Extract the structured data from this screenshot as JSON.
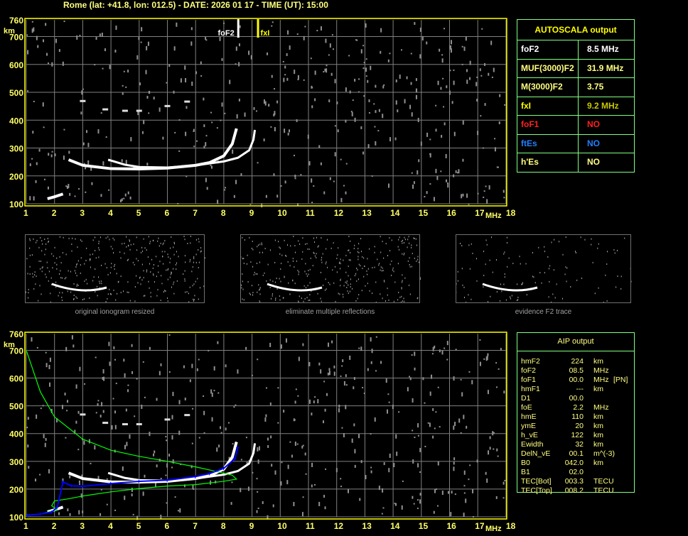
{
  "title": "Rome (lat: +41.8, lon: 012.5) - DATE: 2026 01 17 - TIME (UT): 15:00",
  "autoscala": {
    "header": "AUTOSCALA output",
    "rows": [
      {
        "key": "foF2",
        "value": "8.5 MHz",
        "key_color": "#ffffff",
        "value_color": "#ffffff"
      },
      {
        "key": "MUF(3000)F2",
        "value": "31.9 MHz",
        "key_color": "#ffff80",
        "value_color": "#ffff80"
      },
      {
        "key": "M(3000)F2",
        "value": "3.75",
        "key_color": "#ffff80",
        "value_color": "#ffff80"
      },
      {
        "key": "fxI",
        "value": "9.2 MHz",
        "key_color": "#ffff00",
        "value_color": "#c8c800"
      },
      {
        "key": "foF1",
        "value": "NO",
        "key_color": "#ff2020",
        "value_color": "#ff2020"
      },
      {
        "key": "ftEs",
        "value": "NO",
        "key_color": "#2080ff",
        "value_color": "#2080ff"
      },
      {
        "key": "h'Es",
        "value": "NO",
        "key_color": "#ffff80",
        "value_color": "#ffff80"
      }
    ]
  },
  "aip": {
    "header": "AIP output",
    "rows": [
      [
        "hmF2",
        "224",
        "km",
        ""
      ],
      [
        "foF2",
        "08.5",
        "MHz",
        ""
      ],
      [
        "foF1",
        "00.0",
        "MHz",
        "[PN]"
      ],
      [
        "hmF1",
        "---",
        "km",
        ""
      ],
      [
        "D1",
        "00.0",
        "",
        ""
      ],
      [
        "foE",
        "2.2",
        "MHz",
        ""
      ],
      [
        "hmE",
        "110",
        "km",
        ""
      ],
      [
        "ymE",
        "20",
        "km",
        ""
      ],
      [
        "h_vE",
        "122",
        "km",
        ""
      ],
      [
        "Ewidth",
        "32",
        "km",
        ""
      ],
      [
        "DelN_vE",
        "00.1",
        "m^(-3)",
        ""
      ],
      [
        "B0",
        "042.0",
        "km",
        ""
      ],
      [
        "B1",
        "02.0",
        "",
        ""
      ],
      [
        "TEC[Bot]",
        "003.3",
        "TECU",
        ""
      ],
      [
        "TEC[Top]",
        "008.2",
        "TECU",
        ""
      ]
    ]
  },
  "thumbnails": {
    "captions": [
      "original ionogram resized",
      "eliminate multiple reflections",
      "evidence F2 trace"
    ]
  },
  "chart_data": [
    {
      "type": "scatter",
      "title": "",
      "xlabel": "MHz",
      "ylabel": "km",
      "xlim": [
        1,
        18
      ],
      "ylim": [
        100,
        760
      ],
      "xticks": [
        "1",
        "2",
        "3",
        "4",
        "5",
        "6",
        "7",
        "8",
        "9",
        "10",
        "11",
        "12",
        "13",
        "14",
        "15",
        "16",
        "17",
        "18"
      ],
      "yticks": [
        "100",
        "200",
        "300",
        "400",
        "500",
        "600",
        "700",
        "760"
      ],
      "grid": true,
      "markers": [
        {
          "label": "foF2",
          "freq": 8.5,
          "color": "#ffffff"
        },
        {
          "label": "fxI",
          "freq": 9.2,
          "color": "#ffff00"
        }
      ],
      "traces": {
        "o_trace": [
          [
            2.5,
            258
          ],
          [
            3,
            238
          ],
          [
            4,
            226
          ],
          [
            5,
            225
          ],
          [
            6,
            228
          ],
          [
            7,
            238
          ],
          [
            7.5,
            248
          ],
          [
            8,
            272
          ],
          [
            8.3,
            315
          ],
          [
            8.45,
            370
          ]
        ],
        "x_trace": [
          [
            3.9,
            258
          ],
          [
            4.5,
            240
          ],
          [
            5,
            232
          ],
          [
            6,
            230
          ],
          [
            7,
            238
          ],
          [
            8,
            252
          ],
          [
            8.5,
            265
          ],
          [
            8.9,
            292
          ],
          [
            9.05,
            330
          ],
          [
            9.1,
            365
          ]
        ],
        "e_trace": [
          [
            1.75,
            118
          ],
          [
            2,
            125
          ],
          [
            2.3,
            135
          ]
        ],
        "multiple": [
          [
            3,
            470
          ],
          [
            3.8,
            440
          ],
          [
            4.5,
            435
          ],
          [
            5,
            435
          ],
          [
            6,
            452
          ],
          [
            6.7,
            468
          ]
        ]
      }
    },
    {
      "type": "line",
      "title": "",
      "xlabel": "MHz",
      "ylabel": "km",
      "xlim": [
        1,
        18
      ],
      "ylim": [
        100,
        760
      ],
      "xticks": [
        "1",
        "2",
        "3",
        "4",
        "5",
        "6",
        "7",
        "8",
        "9",
        "10",
        "11",
        "12",
        "13",
        "14",
        "15",
        "16",
        "17",
        "18"
      ],
      "yticks": [
        "100",
        "200",
        "300",
        "400",
        "500",
        "600",
        "700",
        "760"
      ],
      "grid": true,
      "profile": [
        [
          1,
          700
        ],
        [
          1.5,
          550
        ],
        [
          2,
          460
        ],
        [
          3,
          380
        ],
        [
          4,
          340
        ],
        [
          5,
          318
        ],
        [
          6,
          300
        ],
        [
          7,
          280
        ],
        [
          7.8,
          262
        ],
        [
          8.3,
          250
        ],
        [
          8.45,
          236
        ],
        [
          8,
          228
        ],
        [
          7,
          216
        ],
        [
          6,
          211
        ],
        [
          5,
          202
        ],
        [
          4,
          190
        ],
        [
          3,
          175
        ],
        [
          2.5,
          165
        ],
        [
          2,
          157
        ],
        [
          1.9,
          140
        ],
        [
          2.1,
          125
        ],
        [
          1.8,
          118
        ],
        [
          1.5,
          110
        ],
        [
          1,
          106
        ]
      ],
      "fitted_trace": [
        [
          1.05,
          105
        ],
        [
          1.5,
          110
        ],
        [
          1.9,
          117
        ],
        [
          2.1,
          135
        ],
        [
          2.3,
          225
        ],
        [
          2.6,
          212
        ],
        [
          3,
          210
        ],
        [
          4,
          220
        ],
        [
          5,
          228
        ],
        [
          6,
          232
        ],
        [
          7,
          245
        ],
        [
          7.5,
          256
        ],
        [
          8,
          275
        ],
        [
          8.4,
          310
        ],
        [
          8.5,
          350
        ]
      ]
    }
  ],
  "colors": {
    "frame": "#ffff00",
    "grid": "#808080",
    "axis_text": "#ffff66",
    "profile": "#00ff00",
    "fitted": "#0000ff"
  }
}
